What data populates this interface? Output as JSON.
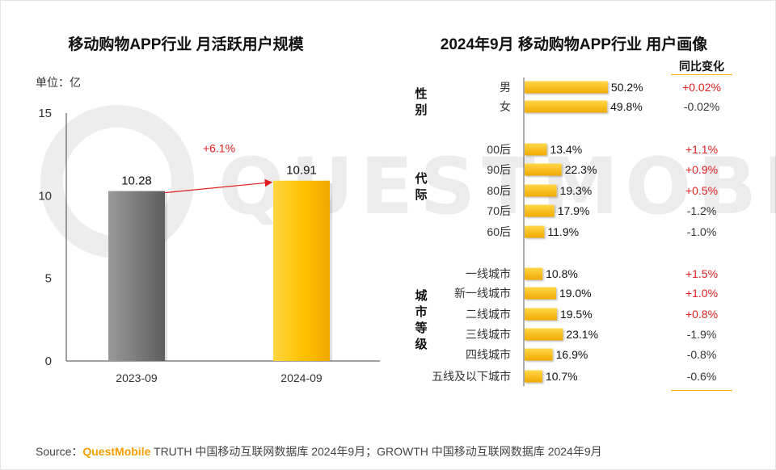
{
  "left": {
    "title": "移动购物APP行业 月活跃用户规模",
    "unit": "单位：亿",
    "growth_label": "+6.1%"
  },
  "right": {
    "title": "2024年9月 移动购物APP行业 用户画像",
    "change_header": "同比变化",
    "groups": [
      {
        "label": "性别"
      },
      {
        "label": "代际"
      },
      {
        "label": "城市等级"
      }
    ]
  },
  "chart_data": [
    {
      "type": "bar",
      "title": "移动购物APP行业 月活跃用户规模",
      "categories": [
        "2023-09",
        "2024-09"
      ],
      "values": [
        10.28,
        10.91
      ],
      "value_labels": [
        "10.28",
        "10.91"
      ],
      "ylim": [
        0,
        15
      ],
      "yticks": [
        "0",
        "5",
        "10",
        "15"
      ],
      "ylabel": "单位：亿",
      "colors": [
        "#7a7a7a",
        "#ffc000"
      ]
    },
    {
      "type": "bar",
      "orientation": "horizontal",
      "title": "2024年9月 移动购物APP行业 用户画像",
      "categories": [
        "男",
        "女",
        "00后",
        "90后",
        "80后",
        "70后",
        "60后",
        "一线城市",
        "新一线城市",
        "二线城市",
        "三线城市",
        "四线城市",
        "五线及以下城市"
      ],
      "values": [
        50.2,
        49.8,
        13.4,
        22.3,
        19.3,
        17.9,
        11.9,
        10.8,
        19.0,
        19.5,
        23.1,
        16.9,
        10.7
      ],
      "value_labels": [
        "50.2%",
        "49.8%",
        "13.4%",
        "22.3%",
        "19.3%",
        "17.9%",
        "11.9%",
        "10.8%",
        "19.0%",
        "19.5%",
        "23.1%",
        "16.9%",
        "10.7%"
      ],
      "yoy_change": [
        "+0.02%",
        "-0.02%",
        "+1.1%",
        "+0.9%",
        "+0.5%",
        "-1.2%",
        "-1.0%",
        "+1.5%",
        "+1.0%",
        "+0.8%",
        "-1.9%",
        "-0.8%",
        "-0.6%"
      ],
      "colors": {
        "bar": "#ffc000",
        "positive": "#e02020",
        "negative": "#333333"
      }
    }
  ],
  "source": {
    "prefix": "Source：",
    "brand": "QuestMobile",
    "text": " TRUTH 中国移动互联网数据库 2024年9月；GROWTH 中国移动互联网数据库 2024年9月"
  },
  "watermark": "QUESTMOBILE"
}
